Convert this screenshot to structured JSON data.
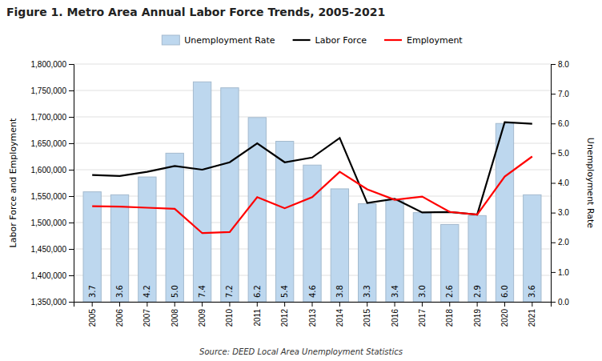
{
  "chart_data": {
    "type": "bar",
    "title": "Figure 1. Metro Area Annual Labor Force Trends, 2005-2021",
    "annotations": [
      "Source: DEED Local Area Unemployment Statistics"
    ],
    "ylabel": "Labor Force and Employment",
    "y2label": "Unemployment Rate",
    "categories": [
      "2005",
      "2006",
      "2007",
      "2008",
      "2009",
      "2010",
      "2011",
      "2012",
      "2013",
      "2014",
      "2015",
      "2016",
      "2017",
      "2018",
      "2019",
      "2020",
      "2021"
    ],
    "series": [
      {
        "name": "Unemployment Rate",
        "type": "bar",
        "axis": "y2",
        "color": "#bdd7ee",
        "data_labels": true,
        "values": [
          3.7,
          3.6,
          4.2,
          5.0,
          7.4,
          7.2,
          6.2,
          5.4,
          4.6,
          3.8,
          3.3,
          3.4,
          3.0,
          2.6,
          2.9,
          6.0,
          3.6
        ],
        "value_labels": [
          "3.7",
          "3.6",
          "4.2",
          "5.0",
          "7.4",
          "7.2",
          "6.2",
          "5.4",
          "4.6",
          "3.8",
          "3.3",
          "3.4",
          "3.0",
          "2.6",
          "2.9",
          "6.0",
          "3.6"
        ]
      },
      {
        "name": "Labor Force",
        "type": "line",
        "color": "#000000",
        "values": [
          1590000,
          1588000,
          1596000,
          1607000,
          1600000,
          1614000,
          1650000,
          1614000,
          1623000,
          1660000,
          1537000,
          1545000,
          1519000,
          1520000,
          1515000,
          1690000,
          1687000
        ]
      },
      {
        "name": "Employment",
        "type": "line",
        "color": "#ff0000",
        "values": [
          1531000,
          1530000,
          1528000,
          1526000,
          1480000,
          1482000,
          1548000,
          1527000,
          1548000,
          1596000,
          1563000,
          1543000,
          1549000,
          1520000,
          1515000,
          1587000,
          1625000
        ]
      }
    ],
    "ylim": [
      1350000,
      1800000
    ],
    "yticks": [
      {
        "value": 1350000,
        "label": "1,350,000"
      },
      {
        "value": 1400000,
        "label": "1,400,000"
      },
      {
        "value": 1450000,
        "label": "1,450,000"
      },
      {
        "value": 1500000,
        "label": "1,500,000"
      },
      {
        "value": 1550000,
        "label": "1,550,000"
      },
      {
        "value": 1600000,
        "label": "1,600,000"
      },
      {
        "value": 1650000,
        "label": "1,650,000"
      },
      {
        "value": 1700000,
        "label": "1,700,000"
      },
      {
        "value": 1750000,
        "label": "1,750,000"
      },
      {
        "value": 1800000,
        "label": "1,800,000"
      }
    ],
    "y2lim": [
      0.0,
      8.0
    ],
    "y2ticks": [
      {
        "value": 0.0,
        "label": "0.0"
      },
      {
        "value": 1.0,
        "label": "1.0"
      },
      {
        "value": 2.0,
        "label": "2.0"
      },
      {
        "value": 3.0,
        "label": "3.0"
      },
      {
        "value": 4.0,
        "label": "4.0"
      },
      {
        "value": 5.0,
        "label": "5.0"
      },
      {
        "value": 6.0,
        "label": "6.0"
      },
      {
        "value": 7.0,
        "label": "7.0"
      },
      {
        "value": 8.0,
        "label": "8.0"
      }
    ],
    "grid": true,
    "legend": "top"
  }
}
